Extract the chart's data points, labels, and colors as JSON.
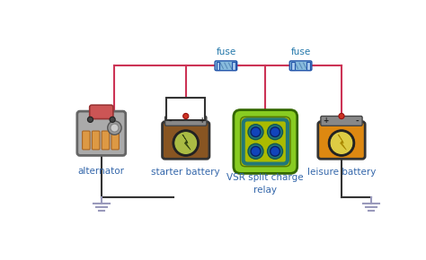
{
  "bg_color": "#ffffff",
  "wire_color_red": "#cc3355",
  "wire_color_black": "#333333",
  "fuse_body_color": "#88bbdd",
  "fuse_cap_color": "#aaccee",
  "fuse_edge_color": "#2255aa",
  "fuse_label_color": "#2277aa",
  "label_color": "#3366aa",
  "label_color_black": "#444444",
  "alternator_label": "alternator",
  "starter_label": "starter battery",
  "relay_label": "VSR split charge\nrelay",
  "leisure_label": "leisure battery",
  "fuse1_label": "fuse",
  "fuse2_label": "fuse",
  "alt_body_color": "#aaaaaa",
  "alt_edge_color": "#666666",
  "alt_cap_color": "#cc5555",
  "alt_fin_color": "#dd9944",
  "alt_fin_edge": "#aa6622",
  "bat1_body_color": "#885522",
  "bat1_circle_color": "#aabb44",
  "bat1_bolt_color": "#334411",
  "bat2_body_color": "#dd8811",
  "bat2_circle_color": "#ddcc44",
  "bat2_bolt_color": "#aa8800",
  "relay_outer_color": "#88cc22",
  "relay_inner_color": "#aabb00",
  "relay_ring_color": "#227777",
  "relay_dot_color": "#1144bb",
  "terminal_dot_color": "#cc3322",
  "ground_color": "#9999bb",
  "connector_box_edge": "#333333"
}
